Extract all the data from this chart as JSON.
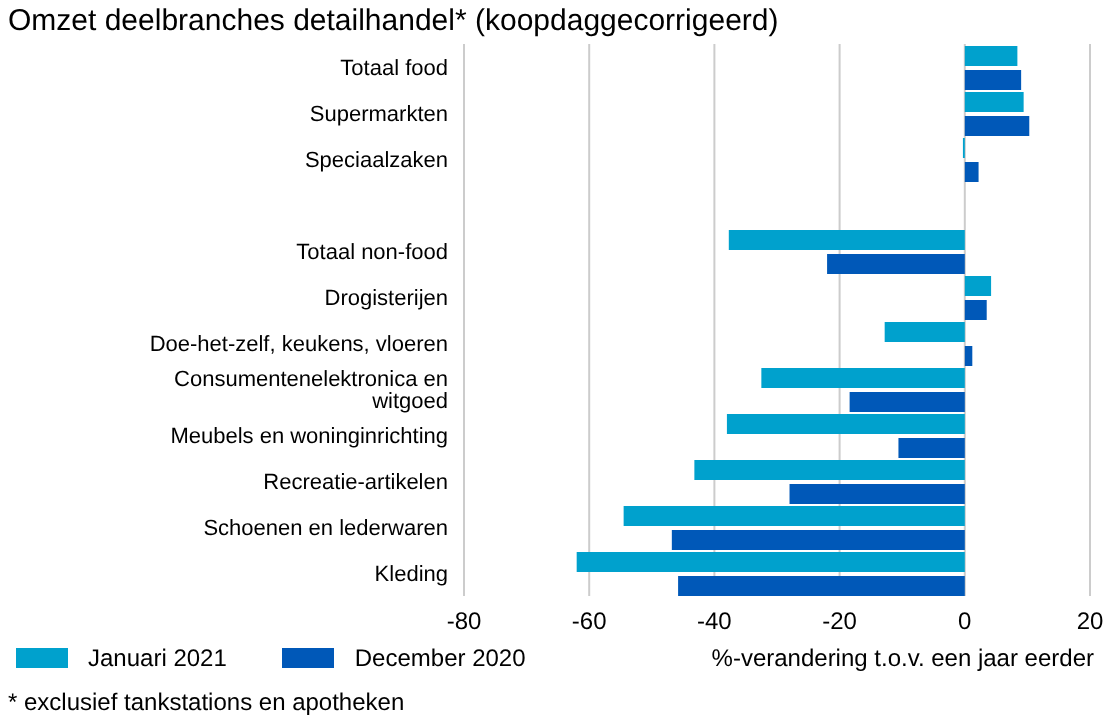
{
  "chart_data": {
    "type": "bar",
    "orientation": "horizontal",
    "title": "Omzet deelbranches detailhandel* (koopdaggecorrigeerd)",
    "xlabel": "%-verandering t.o.v. een jaar eerder",
    "categories": [
      "Totaal food",
      "Supermarkten",
      "Speciaalzaken",
      null,
      "Totaal non-food",
      "Drogisterijen",
      "Doe-het-zelf, keukens, vloeren",
      "Consumentenelektronica en witgoed",
      "Meubels en woninginrichting",
      "Recreatie-artikelen",
      "Schoenen en lederwaren",
      "Kleding"
    ],
    "series": [
      {
        "name": "Januari 2021",
        "color": "#00a1cd",
        "values": [
          8.4,
          9.4,
          -0.3,
          null,
          -37.7,
          4.2,
          -12.8,
          -32.5,
          -38,
          -43.2,
          -54.5,
          -62
        ]
      },
      {
        "name": "December 2020",
        "color": "#0058b8",
        "values": [
          9,
          10.3,
          2.2,
          null,
          -22,
          3.5,
          1.2,
          -18.4,
          -10.6,
          -28,
          -46.8,
          -45.8
        ]
      }
    ],
    "xlim": [
      -80,
      20
    ],
    "xticks": [
      -80,
      -60,
      -40,
      -20,
      0,
      20
    ],
    "grid": "x",
    "legend": "bottom",
    "annotations": [
      "* exclusief tankstations en apotheken"
    ]
  }
}
